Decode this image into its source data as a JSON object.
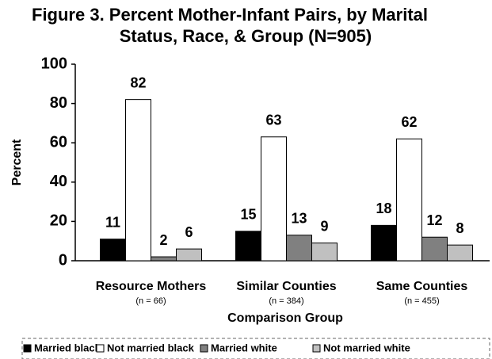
{
  "chart_data": {
    "type": "bar",
    "title_lines": [
      "Figure 3. Percent Mother-Infant Pairs, by Marital",
      "Status, Race, & Group (N=905)"
    ],
    "y_label": "Percent",
    "x_label": "Comparison Group",
    "categories": [
      "Resource Mothers",
      "Similar Counties",
      "Same Counties"
    ],
    "category_notes": [
      "(n = 66)",
      "(n = 384)",
      "(n = 455)"
    ],
    "series": [
      {
        "name": "Married black",
        "color": "#000000",
        "values": [
          11,
          15,
          18
        ]
      },
      {
        "name": "Not married black",
        "color": "#ffffff",
        "values": [
          82,
          63,
          62
        ]
      },
      {
        "name": "Married white",
        "color": "#808080",
        "values": [
          2,
          13,
          12
        ]
      },
      {
        "name": "Not married white",
        "color": "#c0c0c0",
        "values": [
          6,
          9,
          8
        ]
      }
    ],
    "ylim": [
      0,
      100
    ],
    "yticks": [
      0,
      20,
      40,
      60,
      80,
      100
    ],
    "grid": false,
    "legend": "bottom"
  }
}
